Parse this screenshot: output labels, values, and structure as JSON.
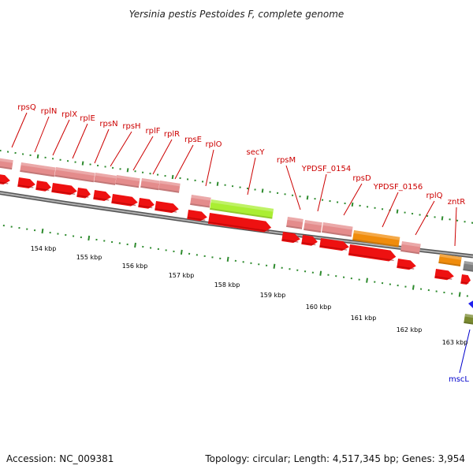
{
  "title": "Yersinia pestis Pestoides F, complete genome",
  "footer": {
    "accession": "Accession: NC_009381",
    "summary": "Topology: circular; Length: 4,517,345 bp; Genes: 3,954"
  },
  "colors": {
    "label_red": "#cc0000",
    "label_blue": "#0000cc",
    "gene_red": "#ee1111",
    "gene_pink": "#e48c8c",
    "gene_green": "#aaee33",
    "gene_orange": "#f08c0c",
    "gene_gray": "#808080",
    "gene_blue": "#2020ee",
    "gene_olive": "#7a8a30",
    "tick_green": "#2e8b2e",
    "backbone": "#888888"
  },
  "genes": [
    {
      "label": "rpsQ",
      "color": "red"
    },
    {
      "label": "rplN",
      "color": "red"
    },
    {
      "label": "rplX",
      "color": "red"
    },
    {
      "label": "rplE",
      "color": "red"
    },
    {
      "label": "rpsN",
      "color": "red"
    },
    {
      "label": "rpsH",
      "color": "red"
    },
    {
      "label": "rplF",
      "color": "red"
    },
    {
      "label": "rplR",
      "color": "red"
    },
    {
      "label": "rpsE",
      "color": "red"
    },
    {
      "label": "rplO",
      "color": "red"
    },
    {
      "label": "secY",
      "color": "red"
    },
    {
      "label": "rpsM",
      "color": "red"
    },
    {
      "label": "YPDSF_0154",
      "color": "red"
    },
    {
      "label": "rpsD",
      "color": "red"
    },
    {
      "label": "YPDSF_0156",
      "color": "red"
    },
    {
      "label": "rplQ",
      "color": "red"
    },
    {
      "label": "zntR",
      "color": "red"
    },
    {
      "label": "mscL",
      "color": "blue"
    }
  ],
  "kbp_labels": [
    "154 kbp",
    "155 kbp",
    "156 kbp",
    "157 kbp",
    "158 kbp",
    "159 kbp",
    "160 kbp",
    "161 kbp",
    "162 kbp",
    "163 kbp"
  ]
}
